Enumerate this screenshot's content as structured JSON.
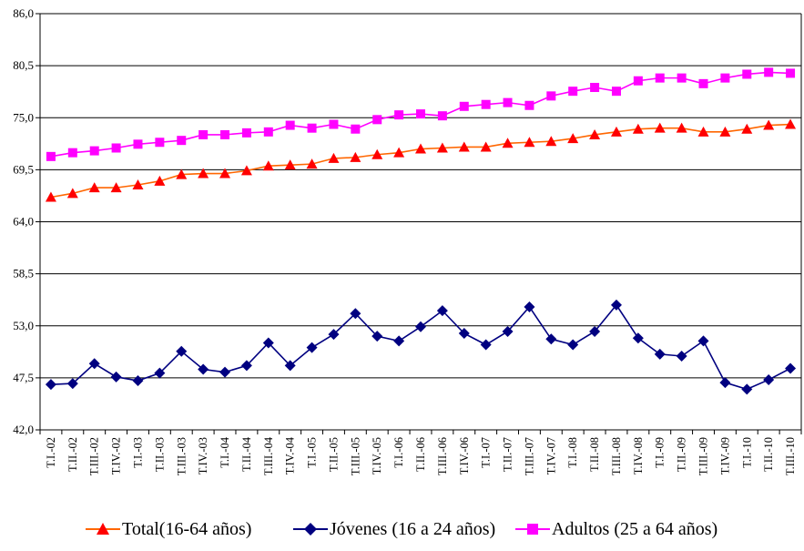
{
  "chart_data": {
    "type": "line",
    "title": "",
    "xlabel": "",
    "ylabel": "",
    "ylim": [
      42.0,
      86.0
    ],
    "yticks": [
      "42,0",
      "47,5",
      "53,0",
      "58,5",
      "64,0",
      "69,5",
      "75,0",
      "80,5",
      "86,0"
    ],
    "ytick_values": [
      42.0,
      47.5,
      53.0,
      58.5,
      64.0,
      69.5,
      75.0,
      80.5,
      86.0
    ],
    "grid": "horizontal",
    "legend_position": "bottom",
    "categories": [
      "T.I.-02",
      "T.II.-02",
      "T.III.-02",
      "T.IV.-02",
      "T.I.-03",
      "T.II.-03",
      "T.III.-03",
      "T.IV.-03",
      "T.I.-04",
      "T.II.-04",
      "T.III.-04",
      "T.IV.-04",
      "T.I.-05",
      "T.II.-05",
      "T.III.-05",
      "T.IV.-05",
      "T.I.-06",
      "T.II.-06",
      "T.III.-06",
      "T.IV.-06",
      "T.I.-07",
      "T.II.-07",
      "T.III.-07",
      "T.IV.-07",
      "T.I.-08",
      "T.II.-08",
      "T.III.-08",
      "T.IV.-08",
      "T.I.-09",
      "T.II.-09",
      "T.III.-09",
      "T.IV.-09",
      "T.I.-10",
      "T.II.-10",
      "T.III.-10"
    ],
    "series": [
      {
        "name": "Total(16-64 años)",
        "color": "#ff6600",
        "marker": "triangle",
        "marker_color": "#ff0000",
        "values": [
          66.6,
          67.0,
          67.6,
          67.6,
          67.9,
          68.3,
          69.0,
          69.1,
          69.1,
          69.4,
          69.9,
          70.0,
          70.1,
          70.7,
          70.8,
          71.1,
          71.3,
          71.7,
          71.8,
          71.9,
          71.9,
          72.3,
          72.4,
          72.5,
          72.8,
          73.2,
          73.5,
          73.8,
          73.9,
          73.9,
          73.5,
          73.5,
          73.8,
          74.2,
          74.3
        ]
      },
      {
        "name": "Jóvenes (16 a 24 años)",
        "color": "#000080",
        "marker": "diamond",
        "marker_color": "#000080",
        "values": [
          46.8,
          46.9,
          49.0,
          47.6,
          47.2,
          48.0,
          50.3,
          48.4,
          48.1,
          48.8,
          51.2,
          48.8,
          50.7,
          52.1,
          54.3,
          51.9,
          51.4,
          52.9,
          54.6,
          52.2,
          51.0,
          52.4,
          55.0,
          51.6,
          51.0,
          52.4,
          55.2,
          51.7,
          50.0,
          49.8,
          51.4,
          47.0,
          46.3,
          47.3,
          48.5
        ]
      },
      {
        "name": "Adultos (25 a 64 años)",
        "color": "#ff00ff",
        "marker": "square",
        "marker_color": "#ff00ff",
        "values": [
          70.9,
          71.3,
          71.5,
          71.8,
          72.2,
          72.4,
          72.6,
          73.2,
          73.2,
          73.4,
          73.5,
          74.2,
          73.9,
          74.3,
          73.8,
          74.8,
          75.3,
          75.4,
          75.2,
          76.2,
          76.4,
          76.6,
          76.3,
          77.3,
          77.8,
          78.2,
          77.8,
          78.9,
          79.2,
          79.2,
          78.6,
          79.2,
          79.6,
          79.8,
          79.7
        ]
      }
    ]
  }
}
